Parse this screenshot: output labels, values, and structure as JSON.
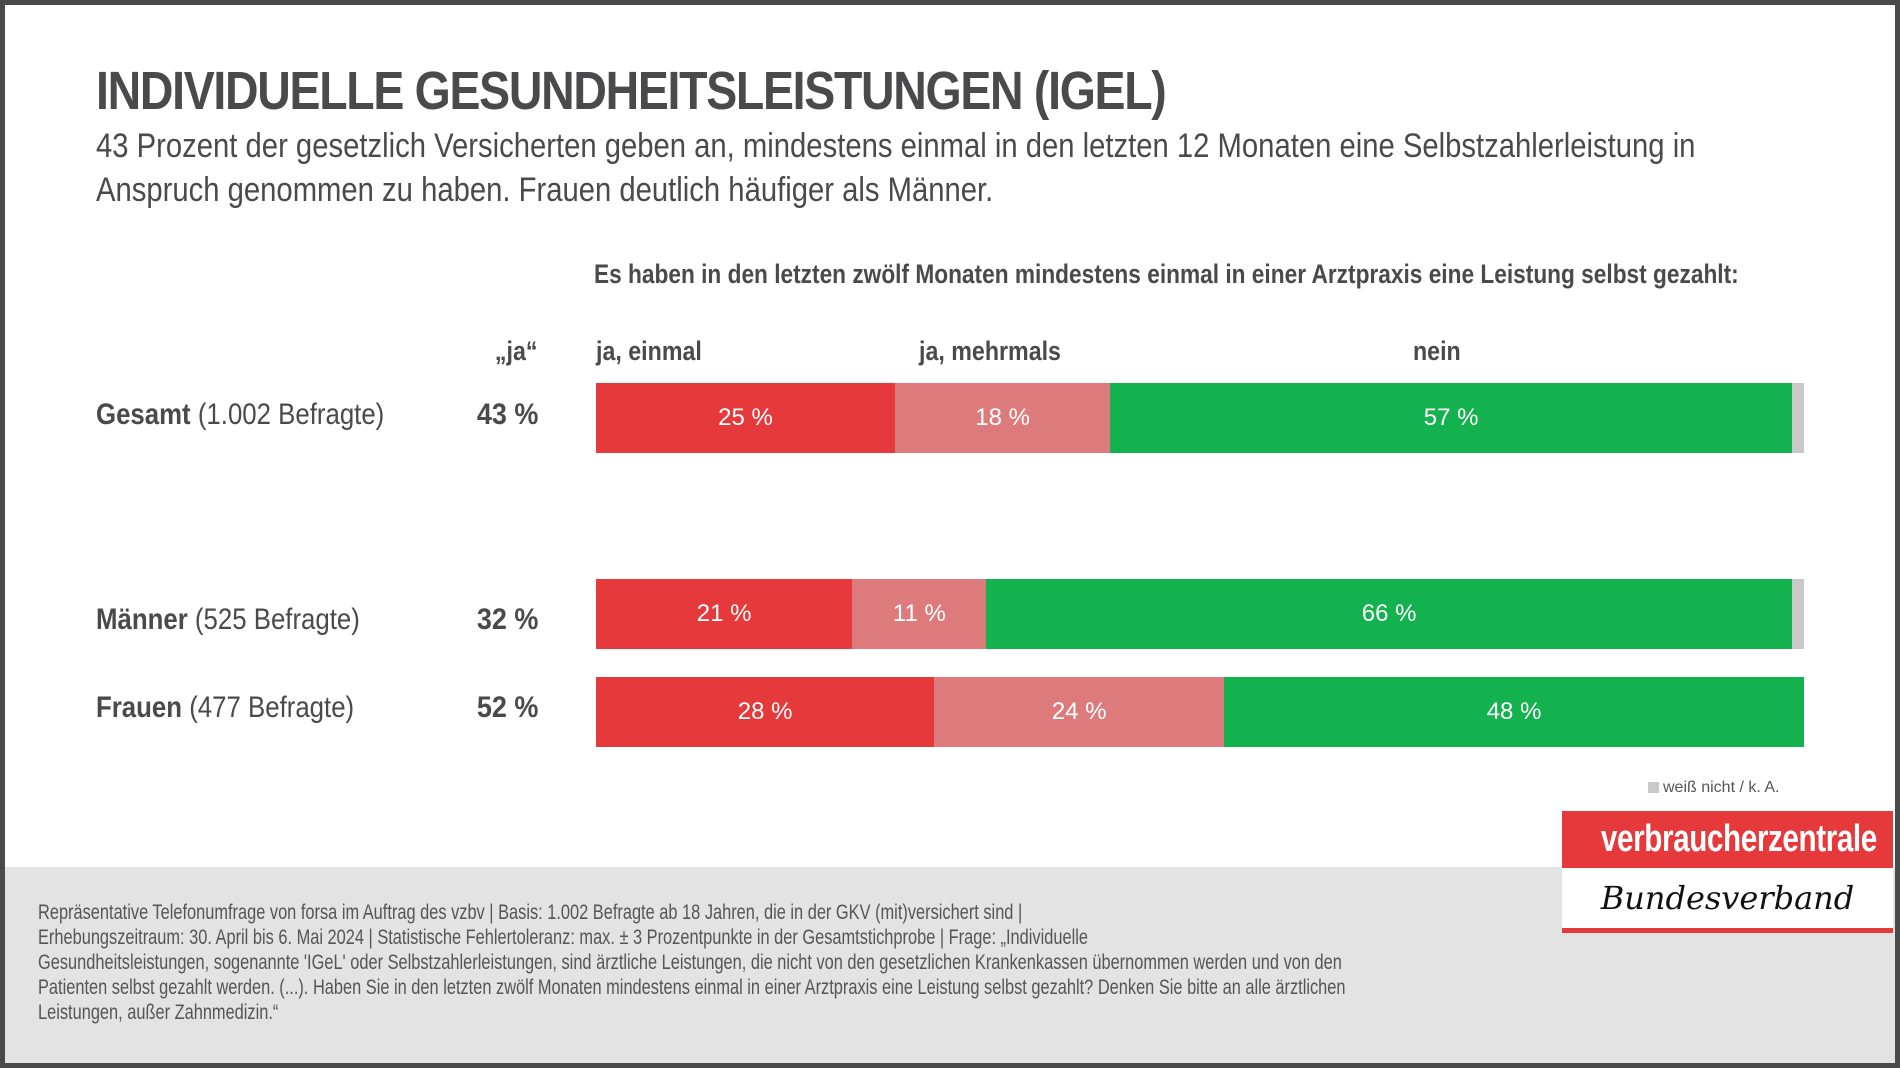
{
  "header": {
    "title": "INDIVIDUELLE GESUNDHEITSLEISTUNGEN (IGEL)",
    "subtitle": "43 Prozent der gesetzlich Versicherten geben an, mindestens einmal in den letzten 12 Monaten eine Selbstzahlerleistung in Anspruch genommen zu haben. Frauen deutlich häufiger als Männer."
  },
  "colors": {
    "ja_einmal": "#E5393B",
    "ja_mehrmals": "#DD7B7C",
    "nein": "#13B24F",
    "weiss_nicht": "#C9C9C9",
    "text": "#4A4A4C",
    "footer_bg": "#E3E3E3"
  },
  "chart_data": {
    "type": "bar",
    "orientation": "horizontal-stacked-100",
    "title": "Es haben in den letzten zwölf Monaten mindestens einmal in einer Arztpraxis eine Leistung selbst gezahlt:",
    "ja_column_header": "„ja“",
    "series": [
      {
        "name": "ja, einmal",
        "key": "ja_einmal"
      },
      {
        "name": "ja, mehrmals",
        "key": "ja_mehrmals"
      },
      {
        "name": "nein",
        "key": "nein"
      },
      {
        "name": "weiß nicht / k. A.",
        "key": "weiss_nicht"
      }
    ],
    "rows": [
      {
        "group": "Gesamt",
        "detail": "(1.002 Befragte)",
        "ja_total": "43 %",
        "values": [
          25,
          18,
          57,
          1
        ],
        "labels": [
          "25 %",
          "18 %",
          "57 %",
          ""
        ]
      },
      {
        "group": "Männer",
        "detail": "(525 Befragte)",
        "ja_total": "32 %",
        "values": [
          21,
          11,
          66,
          1
        ],
        "labels": [
          "21 %",
          "11 %",
          "66 %",
          ""
        ]
      },
      {
        "group": "Frauen",
        "detail": "(477 Befragte)",
        "ja_total": "52 %",
        "values": [
          28,
          24,
          48,
          0
        ],
        "labels": [
          "28 %",
          "24 %",
          "48 %",
          ""
        ]
      }
    ],
    "unit": "%",
    "legend": {
      "label": "weiß nicht / k. A.",
      "placement": "bottom-right"
    }
  },
  "footer": {
    "footnote": "Repräsentative Telefonumfrage von forsa im Auftrag des vzbv | Basis: 1.002 Befragte ab 18 Jahren, die in der GKV (mit)versichert sind | Erhebungszeitraum: 30. April bis 6. Mai 2024 | Statistische Fehlertoleranz: max. ± 3 Prozentpunkte in der Gesamtstichprobe | Frage: „Individuelle Gesundheitsleistungen, sogenannte 'IGeL' oder Selbstzahlerleistungen, sind ärztliche Leistungen, die nicht von den gesetzlichen Krankenkassen übernommen werden und von den Patienten selbst gezahlt werden. (...). Haben Sie in den letzten zwölf Monaten mindestens einmal in einer Arztpraxis eine Leistung selbst gezahlt? Denken Sie bitte an alle ärztlichen Leistungen, außer Zahnmedizin.“",
    "footnote_lines": [
      "Repräsentative Telefonumfrage von forsa im Auftrag des vzbv | Basis: 1.002 Befragte ab 18 Jahren, die in der GKV (mit)versichert sind |",
      "Erhebungszeitraum: 30. April bis 6. Mai 2024 | Statistische Fehlertoleranz: max. ± 3 Prozentpunkte in der Gesamtstichprobe | Frage: „Individuelle",
      "Gesundheitsleistungen, sogenannte 'IGeL' oder Selbstzahlerleistungen, sind ärztliche Leistungen, die nicht von den gesetzlichen Krankenkassen übernommen werden und von den",
      "Patienten selbst gezahlt werden. (...). Haben Sie in den letzten zwölf Monaten mindestens einmal in einer Arztpraxis eine Leistung selbst gezahlt? Denken Sie bitte an alle ärztlichen",
      "Leistungen, außer Zahnmedizin.“"
    ]
  },
  "logo": {
    "top": "verbraucherzentrale",
    "bottom": "Bundesverband"
  }
}
